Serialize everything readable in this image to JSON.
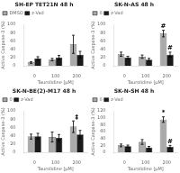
{
  "chart_data": [
    {
      "type": "bar",
      "title": "SH-EP TET21N 48 h",
      "xlabel": "Taurolidine [μM]",
      "ylabel": "Active Caspase-3 (%)",
      "categories": [
        "0",
        "100",
        "200"
      ],
      "series": [
        {
          "name": "DMSO",
          "color": "#aaaaaa",
          "values": [
            8,
            15,
            52
          ],
          "errors": [
            2,
            3,
            22
          ]
        },
        {
          "name": "z-Vad",
          "color": "#1a1a1a",
          "values": [
            18,
            20,
            27
          ],
          "errors": [
            4,
            5,
            8
          ]
        }
      ],
      "ylim": [
        0,
        100
      ],
      "yticks": [
        0,
        20,
        40,
        60,
        80,
        100
      ],
      "grid": false,
      "legend": "upper left"
    },
    {
      "type": "bar",
      "title": "SK-N-AS 48 h",
      "xlabel": "Taurolidine [μM]",
      "ylabel": "Active Caspase-3 (%)",
      "categories": [
        "0",
        "100",
        "200"
      ],
      "series": [
        {
          "name": "0",
          "color": "#aaaaaa",
          "values": [
            28,
            22,
            78
          ],
          "errors": [
            5,
            4,
            8
          ]
        },
        {
          "name": "z-Vad",
          "color": "#1a1a1a",
          "values": [
            20,
            15,
            27
          ],
          "errors": [
            3,
            3,
            6
          ]
        }
      ],
      "ylim": [
        0,
        100
      ],
      "yticks": [
        0,
        20,
        40,
        60,
        80,
        100
      ],
      "grid": false,
      "legend": "upper left",
      "annotations": [
        {
          "text": "#",
          "category": "200",
          "series": "0"
        },
        {
          "text": "#",
          "category": "200",
          "series": "z-Vad"
        }
      ]
    },
    {
      "type": "bar",
      "title": "SK-N-BE(2)-M17 48 h",
      "xlabel": "Taurolidine [μM]",
      "ylabel": "Active Caspase-3 (%)",
      "categories": [
        "0",
        "100",
        "200"
      ],
      "series": [
        {
          "name": "0",
          "color": "#aaaaaa",
          "values": [
            38,
            37,
            62
          ],
          "errors": [
            6,
            12,
            14
          ]
        },
        {
          "name": "z-Vad",
          "color": "#1a1a1a",
          "values": [
            39,
            35,
            43
          ],
          "errors": [
            7,
            8,
            10
          ]
        }
      ],
      "ylim": [
        0,
        100
      ],
      "yticks": [
        0,
        20,
        40,
        60,
        80,
        100
      ],
      "grid": false,
      "legend": "upper left",
      "annotations": [
        {
          "text": "‡",
          "category": "200"
        }
      ]
    },
    {
      "type": "bar",
      "title": "SK-N-SH 48 h",
      "xlabel": "Taurolidine [μM]",
      "ylabel": "Active Caspase-3 (%)",
      "categories": [
        "0",
        "100",
        "200"
      ],
      "series": [
        {
          "name": "0",
          "color": "#aaaaaa",
          "values": [
            20,
            30,
            95
          ],
          "errors": [
            4,
            7,
            8
          ]
        },
        {
          "name": "z-Vad",
          "color": "#1a1a1a",
          "values": [
            18,
            14,
            16
          ],
          "errors": [
            3,
            3,
            4
          ]
        }
      ],
      "ylim": [
        0,
        120
      ],
      "yticks": [
        0,
        20,
        40,
        60,
        80,
        100,
        120
      ],
      "grid": false,
      "legend": "upper left",
      "annotations": [
        {
          "text": "*",
          "category": "200",
          "series": "0"
        },
        {
          "text": "#",
          "category": "200",
          "series": "z-Vad"
        }
      ]
    }
  ]
}
